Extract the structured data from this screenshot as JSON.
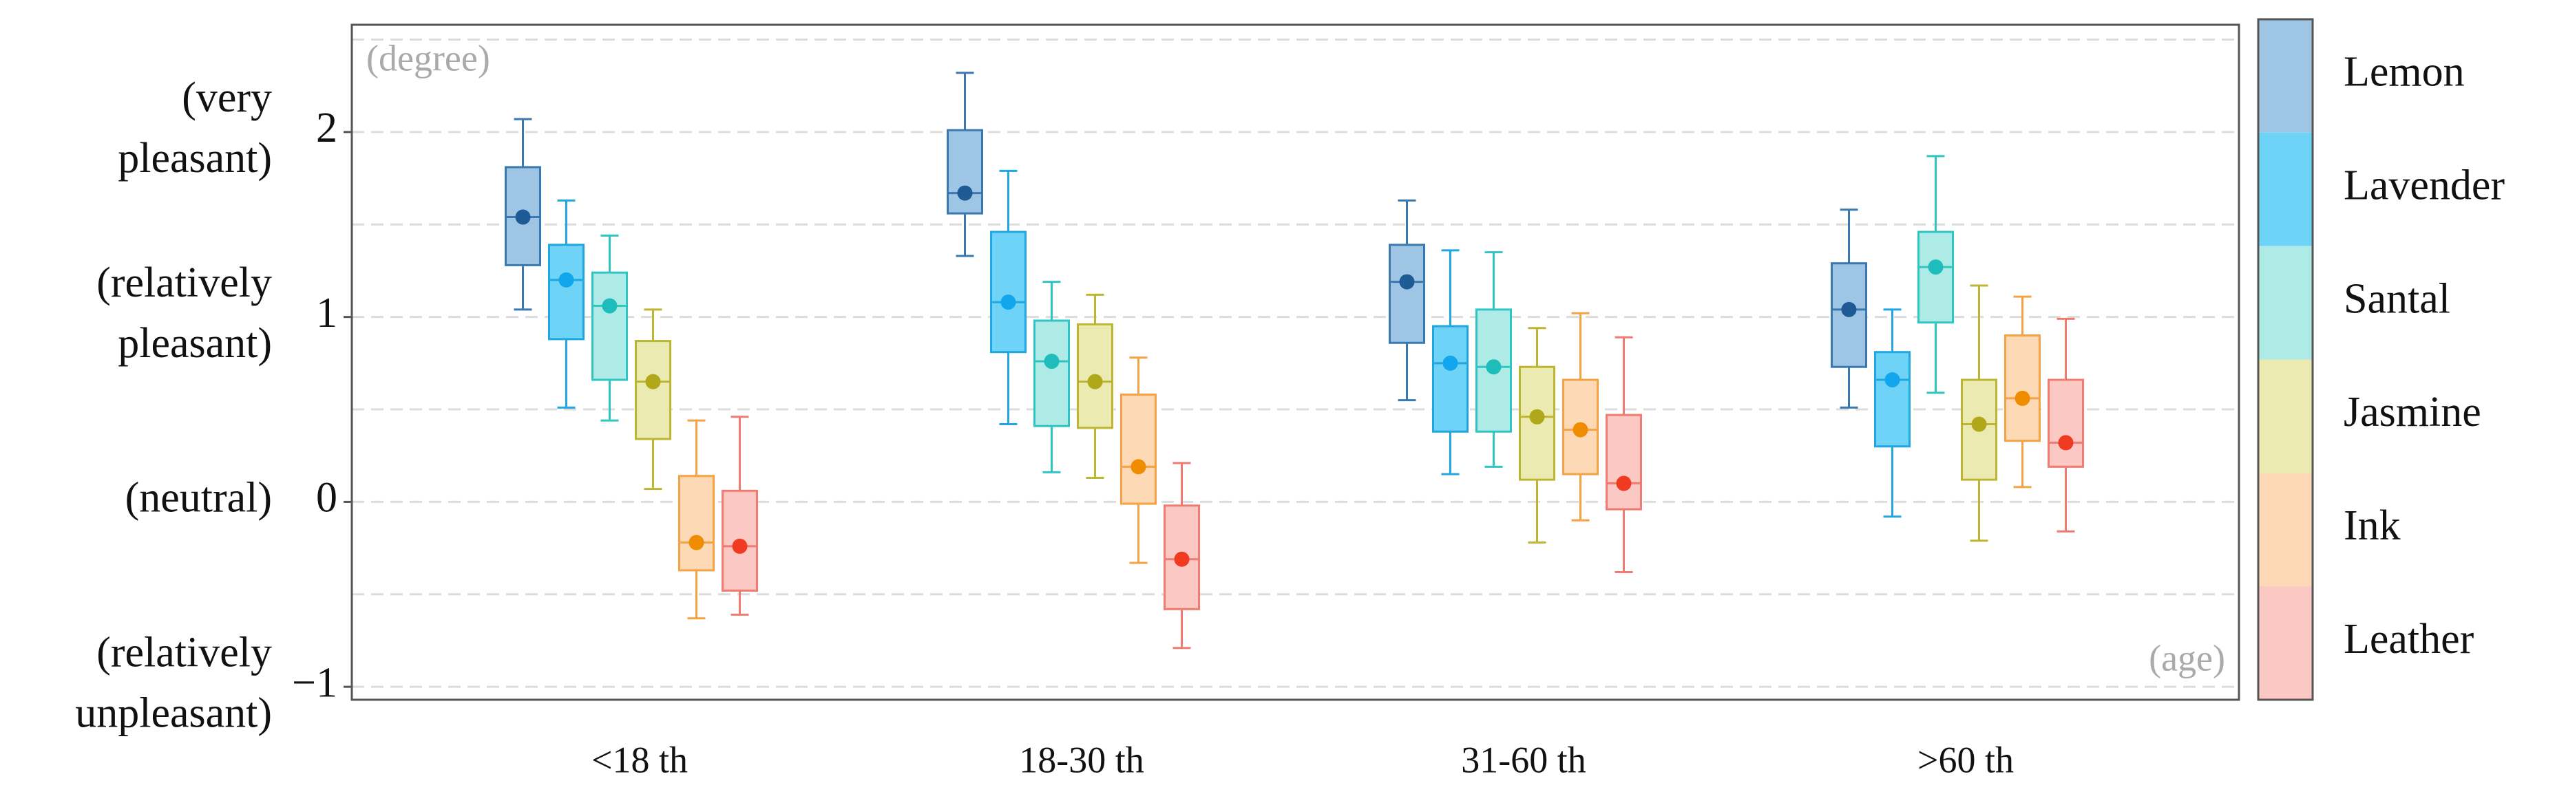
{
  "chart_data": {
    "type": "box",
    "annotations": {
      "y_unit": "(degree)",
      "x_unit": "(age)"
    },
    "categories": [
      "<18 th",
      "18-30 th",
      "31-60 th",
      ">60 th"
    ],
    "ylim": [
      -1.07,
      2.58
    ],
    "yticks": [
      {
        "value": -1,
        "label": "−1"
      },
      0,
      1,
      2
    ],
    "ytick_descriptions": [
      [
        "(relatively",
        "unpleasant)"
      ],
      [
        "(neutral)"
      ],
      [
        "(relatively",
        "pleasant)"
      ],
      [
        "(very",
        "pleasant)"
      ]
    ],
    "minor_yticks": [
      -0.5,
      0.5,
      1.5,
      2.5
    ],
    "grid": true,
    "legend": "right",
    "series": [
      {
        "name": "Lemon",
        "color": "#9fc5e5",
        "edge": "#3a78b0",
        "dot": "#1d5a96",
        "whisker_low": [
          1.04,
          1.33,
          0.55,
          0.51
        ],
        "q1": [
          1.28,
          1.56,
          0.86,
          0.73
        ],
        "median": [
          1.54,
          1.67,
          1.19,
          1.04
        ],
        "q3": [
          1.81,
          2.01,
          1.39,
          1.29
        ],
        "whisker_high": [
          2.07,
          2.32,
          1.63,
          1.58
        ]
      },
      {
        "name": "Lavender",
        "color": "#6ed3f6",
        "edge": "#1ea7e0",
        "dot": "#12a6ee",
        "whisker_low": [
          0.51,
          0.42,
          0.15,
          -0.08
        ],
        "q1": [
          0.88,
          0.81,
          0.38,
          0.3
        ],
        "median": [
          1.2,
          1.08,
          0.75,
          0.66
        ],
        "q3": [
          1.39,
          1.46,
          0.95,
          0.81
        ],
        "whisker_high": [
          1.63,
          1.79,
          1.36,
          1.04
        ]
      },
      {
        "name": "Santal",
        "color": "#aeeae6",
        "edge": "#2ec5c3",
        "dot": "#1fbcbc",
        "whisker_low": [
          0.44,
          0.16,
          0.19,
          0.59
        ],
        "q1": [
          0.66,
          0.41,
          0.38,
          0.97
        ],
        "median": [
          1.06,
          0.76,
          0.73,
          1.27
        ],
        "q3": [
          1.24,
          0.98,
          1.04,
          1.46
        ],
        "whisker_high": [
          1.44,
          1.19,
          1.35,
          1.87
        ]
      },
      {
        "name": "Jasmine",
        "color": "#ebeab1",
        "edge": "#bdb632",
        "dot": "#b0a81a",
        "whisker_low": [
          0.07,
          0.13,
          -0.22,
          -0.21
        ],
        "q1": [
          0.34,
          0.4,
          0.12,
          0.12
        ],
        "median": [
          0.65,
          0.65,
          0.46,
          0.42
        ],
        "q3": [
          0.87,
          0.96,
          0.73,
          0.66
        ],
        "whisker_high": [
          1.04,
          1.12,
          0.94,
          1.17
        ]
      },
      {
        "name": "Ink",
        "color": "#fdd9b6",
        "edge": "#f5a245",
        "dot": "#f08c00",
        "whisker_low": [
          -0.63,
          -0.33,
          -0.1,
          0.08
        ],
        "q1": [
          -0.37,
          -0.01,
          0.15,
          0.33
        ],
        "median": [
          -0.22,
          0.19,
          0.39,
          0.56
        ],
        "q3": [
          0.14,
          0.58,
          0.66,
          0.9
        ],
        "whisker_high": [
          0.44,
          0.78,
          1.02,
          1.11
        ]
      },
      {
        "name": "Leather",
        "color": "#fbc8c3",
        "edge": "#f07b70",
        "dot": "#f03a22",
        "whisker_low": [
          -0.61,
          -0.79,
          -0.38,
          -0.16
        ],
        "q1": [
          -0.48,
          -0.58,
          -0.04,
          0.19
        ],
        "median": [
          -0.24,
          -0.31,
          0.1,
          0.32
        ],
        "q3": [
          0.06,
          -0.02,
          0.47,
          0.66
        ],
        "whisker_high": [
          0.46,
          0.21,
          0.89,
          0.99
        ]
      }
    ]
  }
}
